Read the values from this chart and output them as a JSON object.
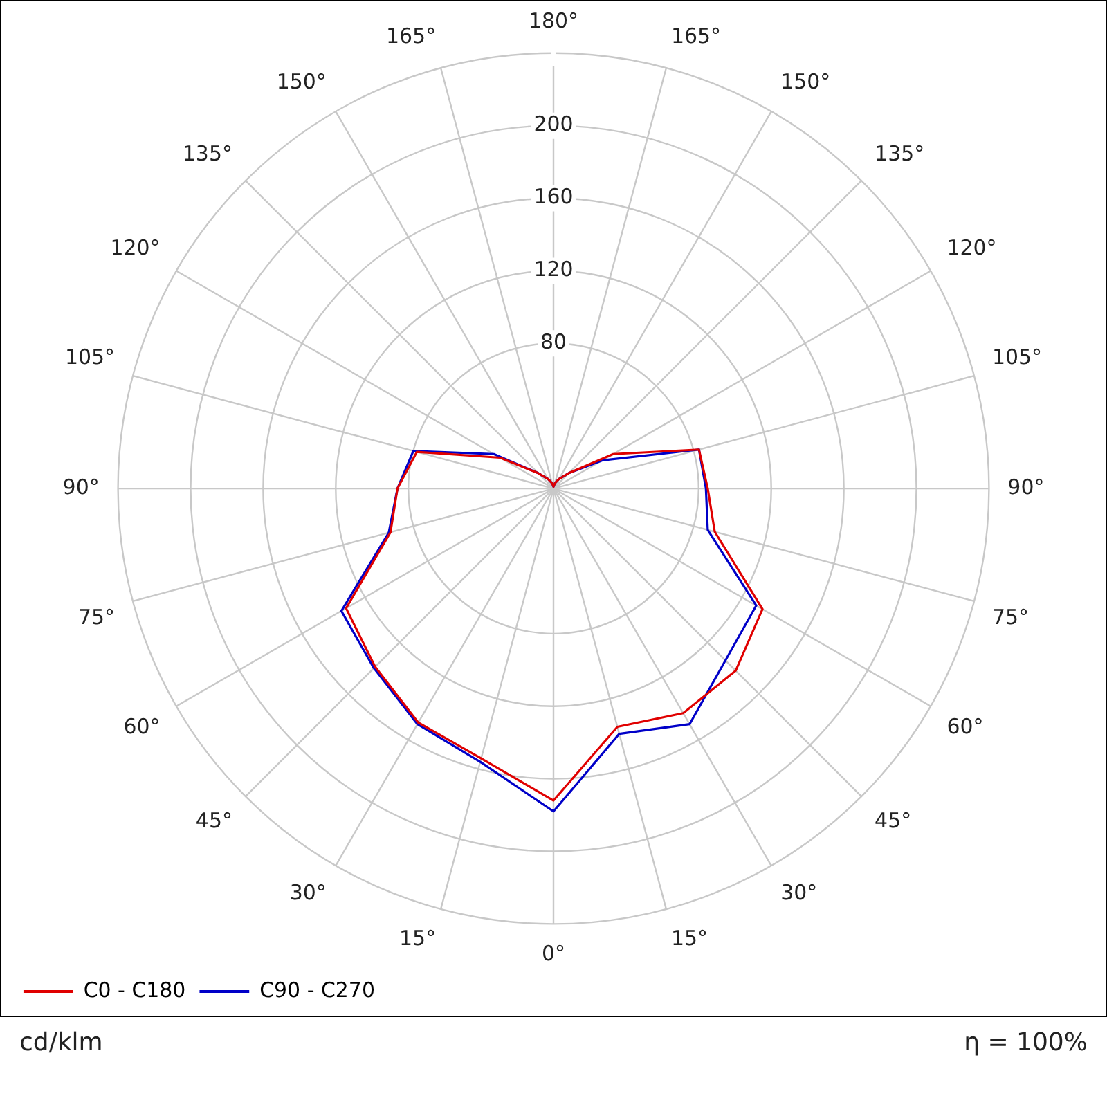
{
  "chart_data": {
    "type": "radar",
    "categories": [
      "180°",
      "165°",
      "150°",
      "135°",
      "120°",
      "105°",
      "90°",
      "75°",
      "60°",
      "45°",
      "30°",
      "15°",
      "0°",
      "15°",
      "30°",
      "45°",
      "60°",
      "75°",
      "90°",
      "105°",
      "120°",
      "135°",
      "150°",
      "165°"
    ],
    "series": [
      {
        "name": "C0 - C180",
        "color": "#e00000",
        "values": [
          1,
          3,
          6,
          12,
          38,
          83,
          85,
          92,
          133,
          142,
          143,
          136,
          172,
          154,
          149,
          139,
          132,
          93,
          86,
          78,
          34,
          12,
          6,
          3
        ]
      },
      {
        "name": "C90 - C270",
        "color": "#0000c8",
        "values": [
          1,
          3,
          6,
          12,
          31,
          83,
          84,
          88,
          129,
          134,
          150,
          140,
          178,
          156,
          150,
          140,
          135,
          94,
          86,
          80,
          38,
          12,
          6,
          3
        ]
      }
    ],
    "ylim": [
      0,
      240
    ],
    "yticks": [
      80,
      120,
      160,
      200
    ],
    "grid": true,
    "legend": "bottom left",
    "marker": "none",
    "line_style": "solid",
    "annotations": [
      "cd/klm",
      "η = 100%"
    ]
  }
}
